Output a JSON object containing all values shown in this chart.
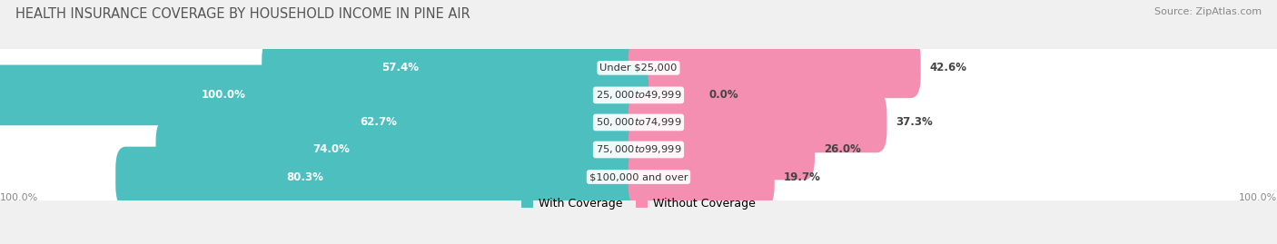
{
  "title": "HEALTH INSURANCE COVERAGE BY HOUSEHOLD INCOME IN PINE AIR",
  "source": "Source: ZipAtlas.com",
  "categories": [
    "Under $25,000",
    "$25,000 to $49,999",
    "$50,000 to $74,999",
    "$75,000 to $99,999",
    "$100,000 and over"
  ],
  "with_coverage": [
    57.4,
    100.0,
    62.7,
    74.0,
    80.3
  ],
  "without_coverage": [
    42.6,
    0.0,
    37.3,
    26.0,
    19.7
  ],
  "coverage_color": "#4dbfbf",
  "no_coverage_color_full": "#f48fb1",
  "no_coverage_color_small": "#f8bbd0",
  "background_color": "#f0f0f0",
  "row_bg_color": "#e0e0e0",
  "title_fontsize": 10.5,
  "label_fontsize": 8.5,
  "legend_fontsize": 9,
  "source_fontsize": 8,
  "axis_label_fontsize": 8
}
